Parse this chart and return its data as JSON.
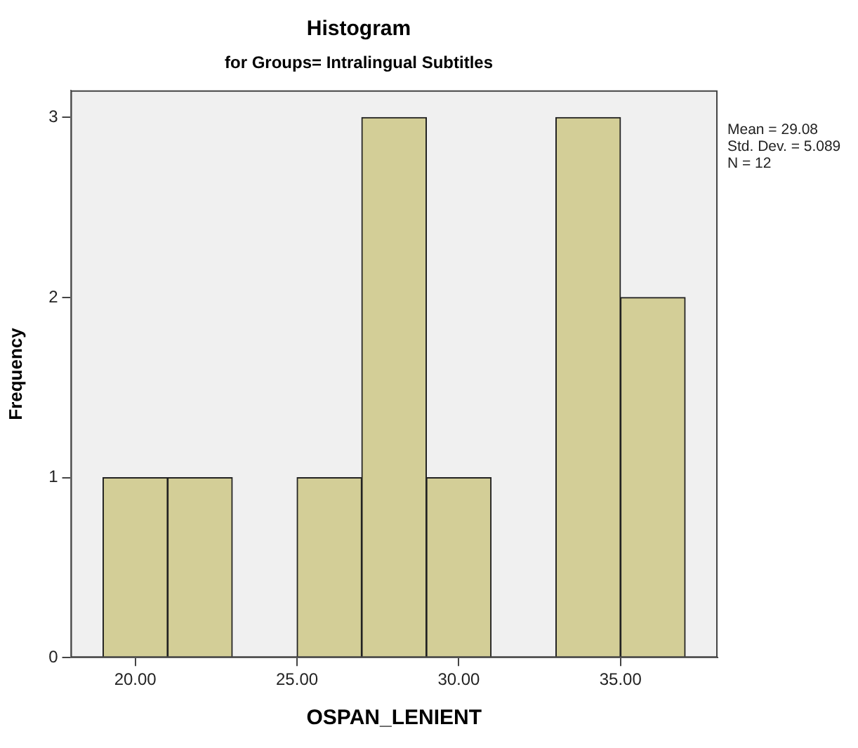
{
  "chart_data": {
    "type": "histogram",
    "title": "Histogram",
    "subtitle": "for Groups= Intralingual Subtitles",
    "xlabel": "OSPAN_LENIENT",
    "ylabel": "Frequency",
    "bins": [
      19,
      21,
      23,
      25,
      27,
      29,
      31,
      33,
      35,
      37
    ],
    "values": [
      1,
      1,
      0,
      1,
      3,
      1,
      0,
      3,
      2
    ],
    "color": "#d3ce97",
    "xlim": [
      18,
      38
    ],
    "xticks": [
      {
        "value": 20,
        "label": "20.00"
      },
      {
        "value": 25,
        "label": "25.00"
      },
      {
        "value": 30,
        "label": "30.00"
      },
      {
        "value": 35,
        "label": "35.00"
      }
    ],
    "ylim": [
      0,
      3.15
    ],
    "yticks": [
      0,
      1,
      2,
      3
    ],
    "annotations": [
      "Mean = 29.08",
      "Std. Dev. = 5.089",
      "N = 12"
    ],
    "grid": false,
    "legend": false
  }
}
